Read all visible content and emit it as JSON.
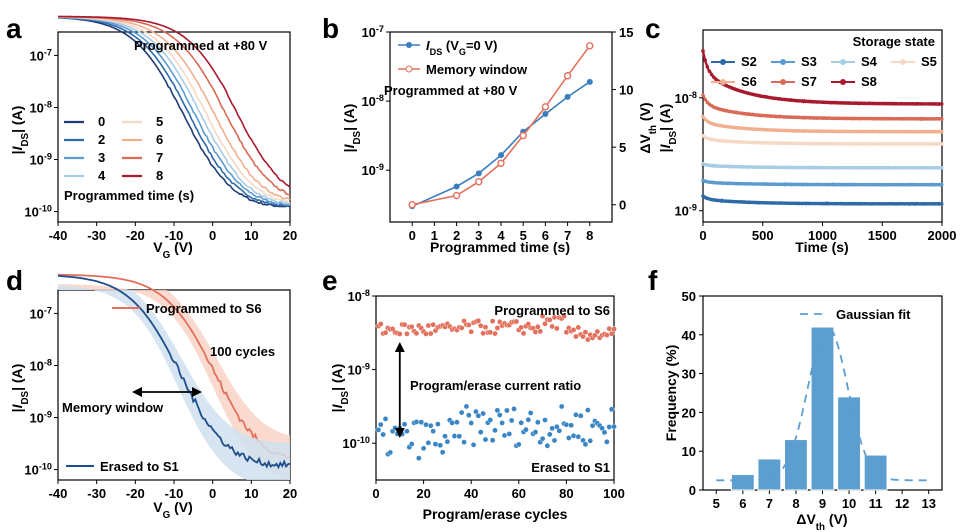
{
  "panel_labels": [
    "a",
    "b",
    "c",
    "d",
    "e",
    "f"
  ],
  "chart_data": [
    {
      "id": "a",
      "type": "line",
      "title": "",
      "annotation": "Programmed at +80 V",
      "xlabel": "V_G (V)",
      "ylabel": "|I_DS| (A)",
      "xlim": [
        -40,
        20
      ],
      "ylim_log10": [
        -10.2,
        -6.55
      ],
      "xticks": [
        -40,
        -30,
        -20,
        -10,
        0,
        10,
        20
      ],
      "yticks": [
        "10^-10",
        "10^-9",
        "10^-8",
        "10^-7"
      ],
      "legend_title": "Programmed time (s)",
      "series": [
        {
          "name": "0",
          "color": "#1f3b73",
          "vshift": 0
        },
        {
          "name": "2",
          "color": "#2e6aa8",
          "vshift": 1.5
        },
        {
          "name": "3",
          "color": "#5b9bd1",
          "vshift": 3
        },
        {
          "name": "4",
          "color": "#a7cde6",
          "vshift": 4.5
        },
        {
          "name": "5",
          "color": "#f6d9c4",
          "vshift": 6
        },
        {
          "name": "6",
          "color": "#f0b08f",
          "vshift": 8
        },
        {
          "name": "7",
          "color": "#d96a55",
          "vshift": 11
        },
        {
          "name": "8",
          "color": "#a81a2e",
          "vshift": 14
        }
      ]
    },
    {
      "id": "b",
      "type": "line",
      "annotation": "Programmed at +80 V",
      "xlabel": "Programmed time (s)",
      "ylabel_left": "|I_DS| (A)",
      "ylabel_right": "ΔV_th (V)",
      "x": [
        0,
        2,
        3,
        4,
        5,
        6,
        7,
        8
      ],
      "xticks": [
        0,
        1,
        2,
        3,
        4,
        5,
        6,
        7,
        8
      ],
      "left_ylim_log10": [
        -9.75,
        -7
      ],
      "right_ylim": [
        -1.5,
        15
      ],
      "right_yticks": [
        0,
        5,
        10,
        15
      ],
      "series": [
        {
          "name": "I_DS (V_G=0 V)",
          "axis": "left",
          "color": "#3a7ebf",
          "values": [
            3e-10,
            5.8e-10,
            9e-10,
            1.65e-09,
            3.6e-09,
            6.5e-09,
            1.15e-08,
            1.9e-08
          ]
        },
        {
          "name": "Memory window",
          "axis": "right",
          "color": "#e2705c",
          "values": [
            0,
            0.8,
            2.0,
            3.6,
            6.0,
            8.5,
            11.2,
            13.8
          ]
        }
      ]
    },
    {
      "id": "c",
      "type": "line",
      "xlabel": "Time (s)",
      "ylabel": "|I_DS| (A)",
      "xlim": [
        0,
        2000
      ],
      "xticks": [
        0,
        500,
        1000,
        1500,
        2000
      ],
      "ylim_log10": [
        -9.1,
        -7.4
      ],
      "yticks": [
        "10^-9",
        "10^-8"
      ],
      "legend_title": "Storage state",
      "series": [
        {
          "name": "S2",
          "color": "#2e6aa8",
          "start": 1.35e-09,
          "end": 1.15e-09
        },
        {
          "name": "S3",
          "color": "#5b9bd1",
          "start": 1.85e-09,
          "end": 1.7e-09
        },
        {
          "name": "S4",
          "color": "#a7cde6",
          "start": 2.6e-09,
          "end": 2.4e-09
        },
        {
          "name": "S5",
          "color": "#f6d9c4",
          "start": 4.6e-09,
          "end": 3.9e-09
        },
        {
          "name": "S6",
          "color": "#f0b08f",
          "start": 6.8e-09,
          "end": 5e-09
        },
        {
          "name": "S7",
          "color": "#d96a55",
          "start": 1.05e-08,
          "end": 6.5e-09
        },
        {
          "name": "S8",
          "color": "#a81a2e",
          "start": 2.6e-08,
          "end": 8.8e-09
        }
      ]
    },
    {
      "id": "d",
      "type": "line",
      "annotation": "100 cycles",
      "annotation2": "Memory window",
      "xlabel": "V_G (V)",
      "ylabel": "|I_DS| (A)",
      "xlim": [
        -40,
        20
      ],
      "ylim_log10": [
        -10.2,
        -6.55
      ],
      "xticks": [
        -40,
        -30,
        -20,
        -10,
        0,
        10,
        20
      ],
      "yticks": [
        "10^-10",
        "10^-9",
        "10^-8",
        "10^-7"
      ],
      "series": [
        {
          "name": "Programmed to S6",
          "color": "#e2705c",
          "vshift": 8
        },
        {
          "name": "Erased to S1",
          "color": "#1f4e8c",
          "vshift": -1
        }
      ]
    },
    {
      "id": "e",
      "type": "scatter",
      "annotation": "Program/erase current ratio",
      "xlabel": "Program/erase cycles",
      "ylabel": "|I_DS| (A)",
      "xlim": [
        0,
        100
      ],
      "xticks": [
        0,
        20,
        40,
        60,
        80,
        100
      ],
      "ylim_log10": [
        -10.5,
        -8
      ],
      "yticks": [
        "10^-10",
        "10^-9",
        "10^-8"
      ],
      "series": [
        {
          "name": "Programmed to S6",
          "color": "#e2705c",
          "center": 3.5e-09,
          "spread_decades": 0.13
        },
        {
          "name": "Erased to S1",
          "color": "#3a86c4",
          "center": 1.3e-10,
          "spread_decades": 0.3
        }
      ]
    },
    {
      "id": "f",
      "type": "bar",
      "xlabel": "ΔV_th (V)",
      "ylabel": "Frequency (%)",
      "categories": [
        5,
        6,
        7,
        8,
        9,
        10,
        11,
        12,
        13
      ],
      "values": [
        0,
        4,
        8,
        13,
        42,
        24,
        9,
        0,
        0
      ],
      "ylim": [
        0,
        50
      ],
      "yticks": [
        0,
        10,
        20,
        30,
        40,
        50
      ],
      "legend": "Gaussian fit",
      "fit": {
        "mu": 9.2,
        "sigma": 0.75,
        "peak": 42,
        "baseline": 2.5
      },
      "bar_color": "#5b9ecf"
    }
  ]
}
